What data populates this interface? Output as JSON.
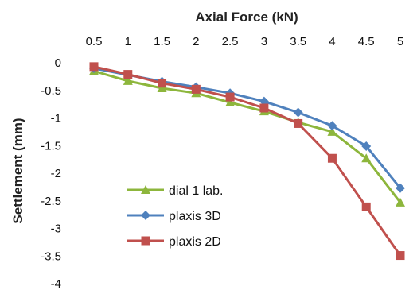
{
  "chart_data": {
    "type": "line",
    "xlabel": "Axial Force (kN)",
    "ylabel": "Settlement (mm)",
    "x_axis_position": "top",
    "xlim": [
      0.5,
      5
    ],
    "ylim": [
      -4,
      0
    ],
    "x_ticks": [
      "0.5",
      "1",
      "1.5",
      "2",
      "2.5",
      "3",
      "3.5",
      "4",
      "4.5",
      "5"
    ],
    "y_ticks": [
      "0",
      "-0.5",
      "-1",
      "-1.5",
      "-2",
      "-2.5",
      "-3",
      "-3.5",
      "-4"
    ],
    "x": [
      0.5,
      1,
      1.5,
      2,
      2.5,
      3,
      3.5,
      4,
      4.5,
      5
    ],
    "grid": false,
    "legend_position": "left",
    "series": [
      {
        "name": "dial 1 lab.",
        "color": "#8DB63C",
        "marker": "triangle",
        "values": [
          -0.15,
          -0.33,
          -0.46,
          -0.55,
          -0.72,
          -0.88,
          -1.08,
          -1.25,
          -1.73,
          -2.53
        ]
      },
      {
        "name": "plaxis 3D",
        "color": "#4F81BD",
        "marker": "diamond",
        "values": [
          -0.1,
          -0.22,
          -0.34,
          -0.44,
          -0.55,
          -0.7,
          -0.9,
          -1.14,
          -1.51,
          -2.27
        ]
      },
      {
        "name": "plaxis 2D",
        "color": "#C0504D",
        "marker": "square",
        "values": [
          -0.07,
          -0.21,
          -0.37,
          -0.48,
          -0.62,
          -0.82,
          -1.1,
          -1.73,
          -2.61,
          -3.49
        ]
      }
    ]
  }
}
